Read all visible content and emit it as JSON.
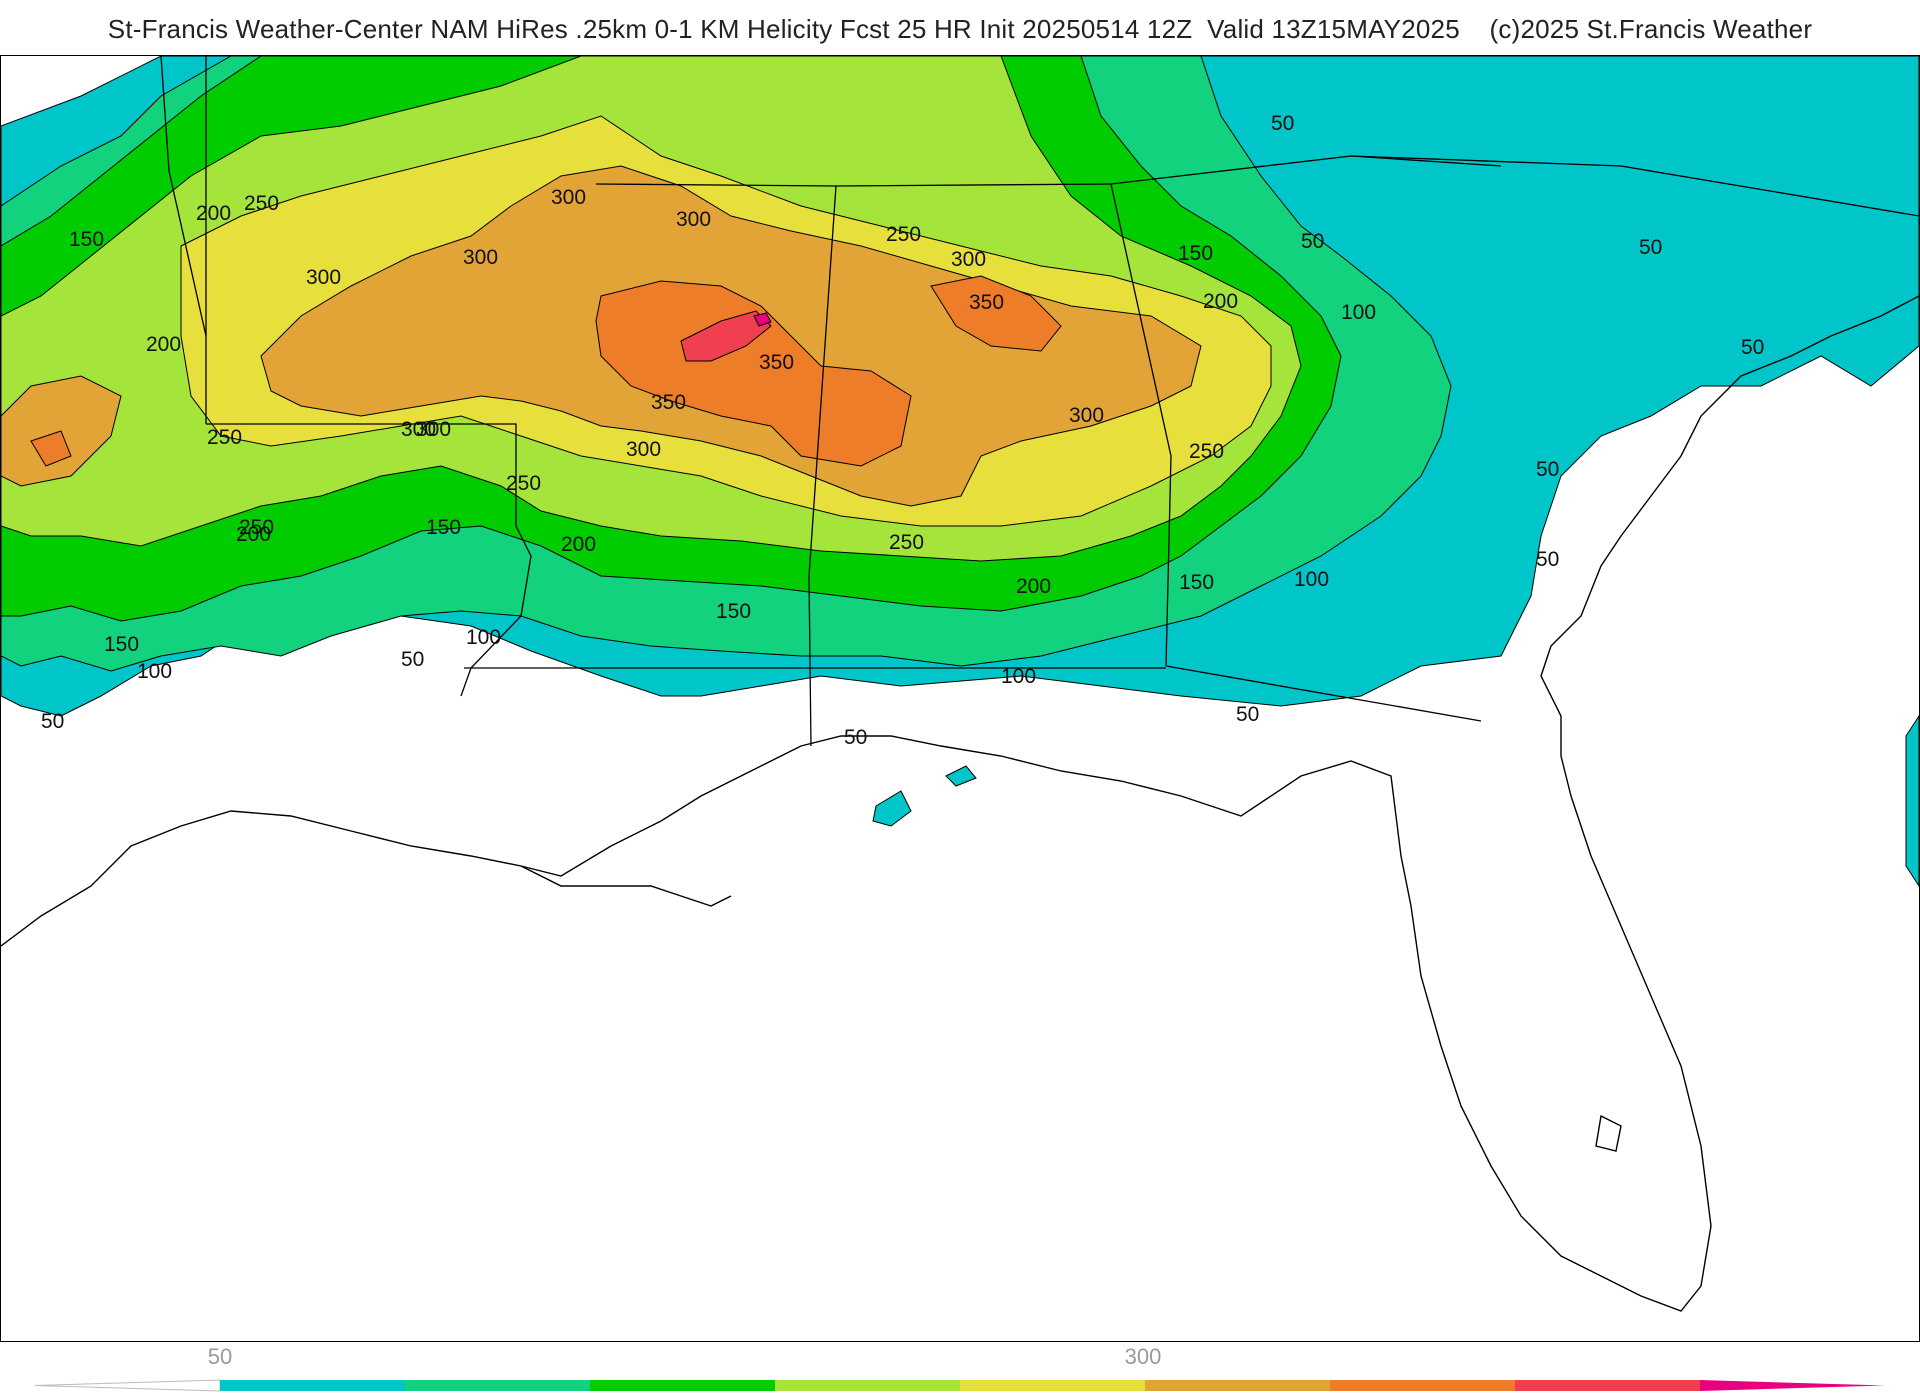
{
  "title": "St-Francis Weather-Center NAM HiRes .25km 0-1 KM Helicity Fcst 25 HR Init 20250514 12Z  Valid 13Z15MAY2025    (c)2025 St.Francis Weather",
  "colors": {
    "band_50_100": "#00c6c9",
    "band_100_150": "#12d27d",
    "band_150_200": "#00cc00",
    "band_200_250": "#a5e43a",
    "band_250_300": "#e6df3c",
    "band_300_350": "#e2a437",
    "band_350_400": "#ee7d2a",
    "band_400_450": "#f0404f",
    "band_450_500": "#e8007e",
    "land_outline": "#000000",
    "county_lines": "#c8c8c8"
  },
  "contour_labels": [
    {
      "text": "50"
    },
    {
      "text": "50"
    },
    {
      "text": "50"
    },
    {
      "text": "50"
    },
    {
      "text": "50"
    },
    {
      "text": "50"
    },
    {
      "text": "50"
    },
    {
      "text": "50"
    },
    {
      "text": "50"
    },
    {
      "text": "50"
    },
    {
      "text": "100"
    },
    {
      "text": "100"
    },
    {
      "text": "100"
    },
    {
      "text": "100"
    },
    {
      "text": "100"
    },
    {
      "text": "150"
    },
    {
      "text": "150"
    },
    {
      "text": "150"
    },
    {
      "text": "150"
    },
    {
      "text": "150"
    },
    {
      "text": "150"
    },
    {
      "text": "200"
    },
    {
      "text": "200"
    },
    {
      "text": "200"
    },
    {
      "text": "200"
    },
    {
      "text": "200"
    },
    {
      "text": "200"
    },
    {
      "text": "250"
    },
    {
      "text": "250"
    },
    {
      "text": "250"
    },
    {
      "text": "250"
    },
    {
      "text": "250"
    },
    {
      "text": "250"
    },
    {
      "text": "250"
    },
    {
      "text": "300"
    },
    {
      "text": "300"
    },
    {
      "text": "300"
    },
    {
      "text": "300"
    },
    {
      "text": "300"
    },
    {
      "text": "300"
    },
    {
      "text": "300"
    },
    {
      "text": "300"
    },
    {
      "text": "300"
    },
    {
      "text": "350"
    },
    {
      "text": "350"
    },
    {
      "text": "350"
    }
  ],
  "colorbar": {
    "tick_labels": [
      "50",
      "300"
    ],
    "levels": [
      50,
      100,
      150,
      200,
      250,
      300,
      350,
      400,
      450,
      500
    ],
    "colors": [
      "#00c6c9",
      "#12d27d",
      "#00cc00",
      "#a5e43a",
      "#e6df3c",
      "#e2a437",
      "#ee7d2a",
      "#f0404f",
      "#e8007e"
    ]
  }
}
